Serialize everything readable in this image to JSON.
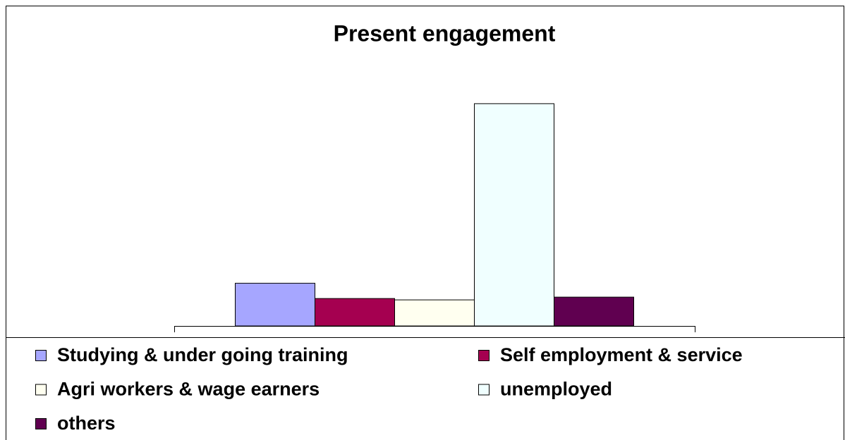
{
  "chart_data": {
    "type": "bar",
    "title": "Present engagement",
    "categories": [
      null
    ],
    "series": [
      {
        "name": "Studying & under going training",
        "color": "#a6a6ff",
        "values": [
          12.3
        ]
      },
      {
        "name": "Self employment & service",
        "color": "#a50050",
        "values": [
          7.9
        ]
      },
      {
        "name": "Agri workers & wage earners",
        "color": "#fffff0",
        "values": [
          7.5
        ]
      },
      {
        "name": "unemployed",
        "color": "#f0ffff",
        "values": [
          64
        ]
      },
      {
        "name": "others",
        "color": "#600050",
        "values": [
          8.3
        ]
      }
    ],
    "ylim": [
      0,
      75
    ]
  }
}
